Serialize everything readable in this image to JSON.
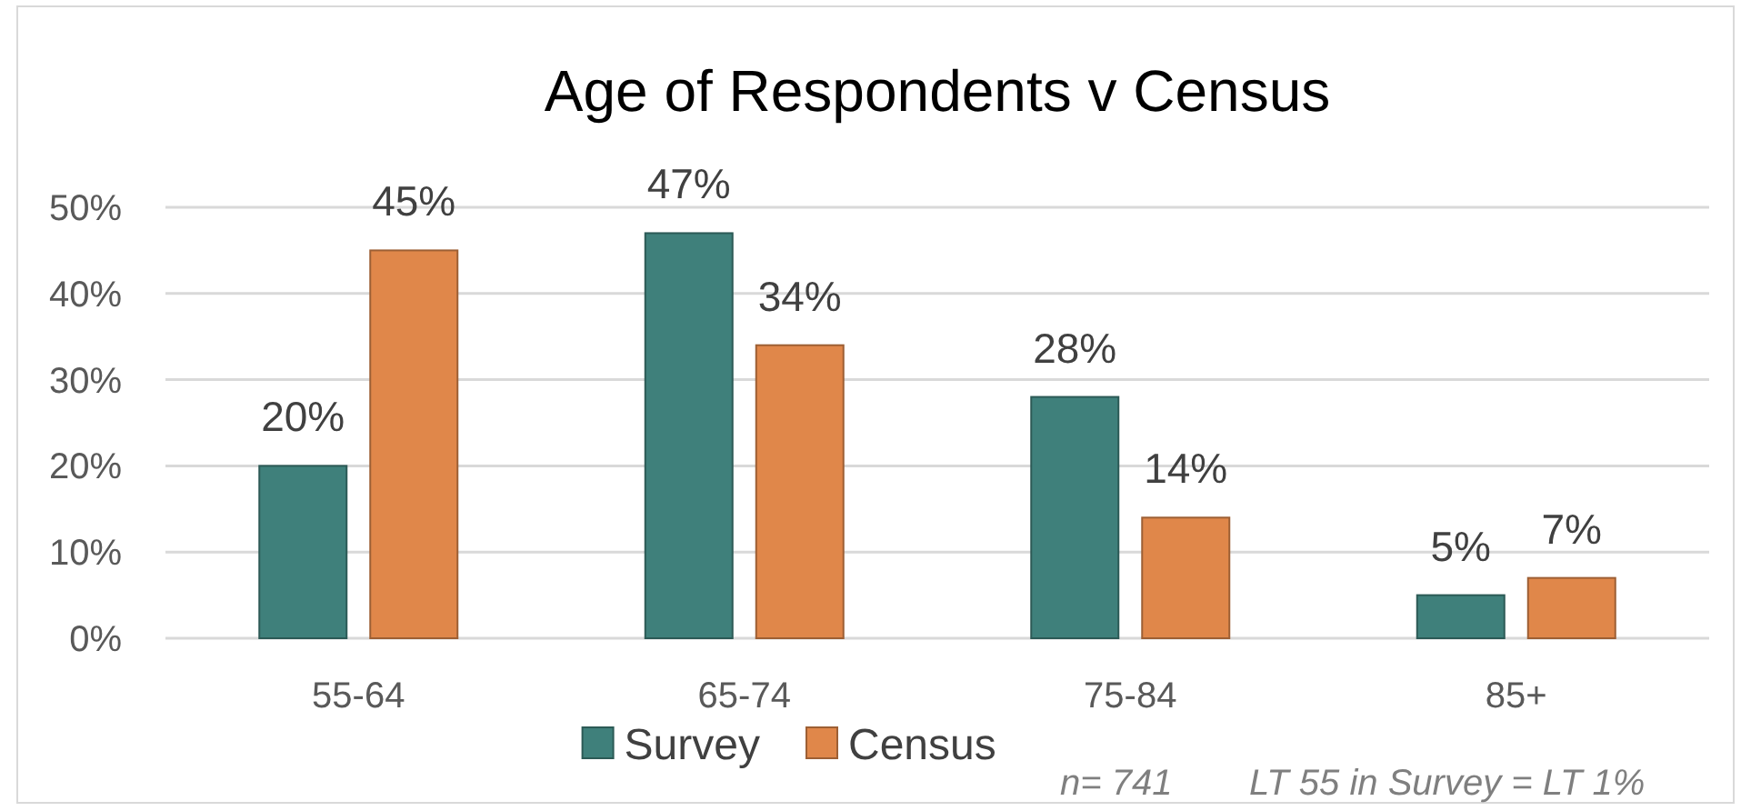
{
  "chart_data": {
    "type": "bar",
    "title": "Age of Respondents v Census",
    "categories": [
      "55-64",
      "65-74",
      "75-84",
      "85+"
    ],
    "series": [
      {
        "name": "Survey",
        "color": "#3f807b",
        "values": [
          20,
          47,
          28,
          5
        ],
        "value_labels": [
          "20%",
          "47%",
          "28%",
          "5%"
        ]
      },
      {
        "name": "Census",
        "color": "#e0874a",
        "values": [
          45,
          34,
          14,
          7
        ],
        "value_labels": [
          "45%",
          "34%",
          "14%",
          "7%"
        ]
      }
    ],
    "ylim": [
      0,
      50
    ],
    "yticks": [
      {
        "value": 0,
        "label": "0%"
      },
      {
        "value": 10,
        "label": "10%"
      },
      {
        "value": 20,
        "label": "20%"
      },
      {
        "value": 30,
        "label": "30%"
      },
      {
        "value": 40,
        "label": "40%"
      },
      {
        "value": 50,
        "label": "50%"
      }
    ],
    "grid": "y",
    "legend": "bottom",
    "annotations": [
      "n= 741",
      "LT 55 in Survey = LT 1%"
    ]
  }
}
